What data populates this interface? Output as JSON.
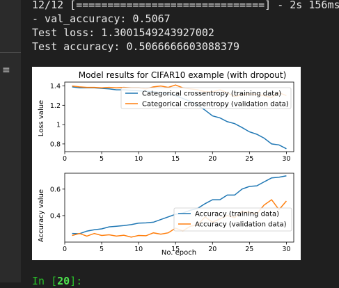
{
  "output": {
    "progress_line": "12/12 [==============================] - 2s 156ms",
    "val_accuracy_line": "- val_accuracy: 0.5067",
    "test_loss_line": "Test loss: 1.3001549243927002",
    "test_accuracy_line": "Test accuracy: 0.5066666603088379"
  },
  "prompt": {
    "prefix": "In [",
    "number": "20",
    "suffix": "]:"
  },
  "colors": {
    "training": "#1f77b4",
    "validation": "#ff7f0e",
    "prompt": "#29c229"
  },
  "icons": {
    "menu": "hamburger-menu-icon"
  },
  "chart_data": [
    {
      "type": "line",
      "title": "Model results for CIFAR10 example (with dropout)",
      "xlabel": "",
      "ylabel": "Loss value",
      "xlim": [
        0,
        31
      ],
      "ylim": [
        0.72,
        1.44
      ],
      "xticks": [
        0,
        5,
        10,
        15,
        20,
        25,
        30
      ],
      "yticks": [
        0.8,
        1.0,
        1.2,
        1.4
      ],
      "legend": "top-right",
      "grid": false,
      "x": [
        1,
        2,
        3,
        4,
        5,
        6,
        7,
        8,
        9,
        10,
        11,
        12,
        13,
        14,
        15,
        16,
        17,
        18,
        19,
        20,
        21,
        22,
        23,
        24,
        25,
        26,
        27,
        28,
        29,
        30
      ],
      "series": [
        {
          "name": "Categorical crossentropy (training data)",
          "color": "#1f77b4",
          "values": [
            1.39,
            1.38,
            1.38,
            1.38,
            1.375,
            1.37,
            1.36,
            1.36,
            1.355,
            1.35,
            1.345,
            1.34,
            1.33,
            1.32,
            1.3,
            1.27,
            1.24,
            1.2,
            1.15,
            1.09,
            1.07,
            1.03,
            1.01,
            0.97,
            0.925,
            0.9,
            0.86,
            0.8,
            0.79,
            0.75
          ]
        },
        {
          "name": "Categorical crossentropy (validation data)",
          "color": "#ff7f0e",
          "values": [
            1.4,
            1.39,
            1.385,
            1.385,
            1.38,
            1.385,
            1.38,
            1.385,
            1.38,
            1.38,
            1.37,
            1.39,
            1.4,
            1.385,
            1.41,
            1.38,
            1.37,
            1.36,
            1.34,
            1.34,
            1.36,
            1.33,
            1.29,
            1.31,
            1.32,
            1.31,
            1.3,
            1.28,
            1.33,
            1.3
          ]
        }
      ]
    },
    {
      "type": "line",
      "title": "",
      "xlabel": "No. epoch",
      "ylabel": "Accuracy value",
      "xlim": [
        0,
        31
      ],
      "ylim": [
        0.2,
        0.72
      ],
      "xticks": [
        0,
        5,
        10,
        15,
        20,
        25,
        30
      ],
      "yticks": [
        0.4,
        0.6
      ],
      "legend": "bottom-right",
      "grid": false,
      "x": [
        1,
        2,
        3,
        4,
        5,
        6,
        7,
        8,
        9,
        10,
        11,
        12,
        13,
        14,
        15,
        16,
        17,
        18,
        19,
        20,
        21,
        22,
        23,
        24,
        25,
        26,
        27,
        28,
        29,
        30
      ],
      "series": [
        {
          "name": "Accuracy (training data)",
          "color": "#1f77b4",
          "values": [
            0.265,
            0.263,
            0.283,
            0.293,
            0.3,
            0.315,
            0.32,
            0.325,
            0.332,
            0.343,
            0.345,
            0.35,
            0.37,
            0.39,
            0.41,
            0.42,
            0.44,
            0.455,
            0.49,
            0.52,
            0.52,
            0.555,
            0.555,
            0.6,
            0.62,
            0.625,
            0.655,
            0.685,
            0.69,
            0.7
          ]
        },
        {
          "name": "Accuracy (validation data)",
          "color": "#ff7f0e",
          "values": [
            0.25,
            0.265,
            0.245,
            0.265,
            0.25,
            0.255,
            0.245,
            0.252,
            0.238,
            0.25,
            0.248,
            0.27,
            0.26,
            0.27,
            0.305,
            0.285,
            0.32,
            0.33,
            0.39,
            0.35,
            0.375,
            0.4,
            0.385,
            0.43,
            0.425,
            0.415,
            0.48,
            0.52,
            0.445,
            0.51
          ]
        }
      ]
    }
  ]
}
